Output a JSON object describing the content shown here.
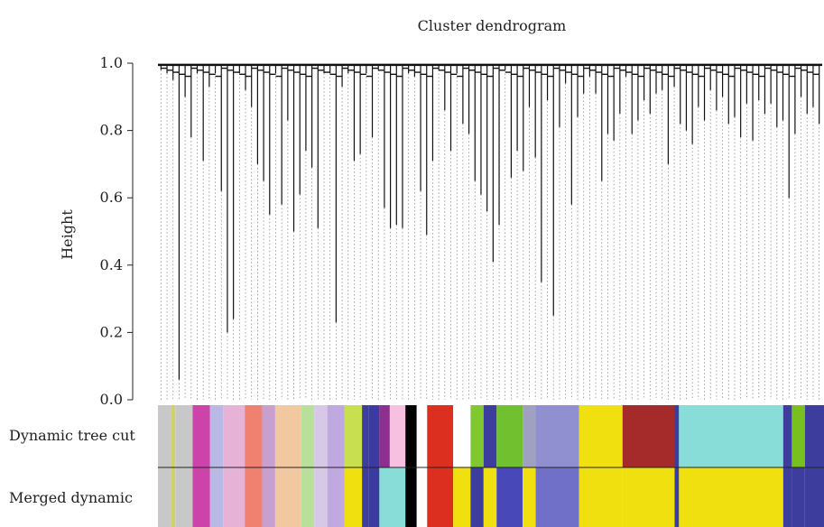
{
  "chart_data": {
    "type": "dendrogram",
    "title": "Cluster dendrogram",
    "ylabel": "Height",
    "ylim": [
      0,
      1
    ],
    "yticks": [
      "0.0",
      "0.2",
      "0.4",
      "0.6",
      "0.8",
      "1.0"
    ],
    "leaf_heights": [
      0.98,
      0.97,
      0.95,
      0.06,
      0.9,
      0.78,
      0.97,
      0.71,
      0.93,
      0.97,
      0.62,
      0.2,
      0.24,
      0.97,
      0.92,
      0.87,
      0.7,
      0.65,
      0.55,
      0.97,
      0.58,
      0.83,
      0.5,
      0.61,
      0.74,
      0.69,
      0.51,
      0.97,
      0.97,
      0.23,
      0.93,
      0.97,
      0.71,
      0.73,
      0.97,
      0.78,
      0.98,
      0.57,
      0.51,
      0.52,
      0.51,
      0.97,
      0.96,
      0.62,
      0.49,
      0.71,
      0.98,
      0.86,
      0.74,
      0.97,
      0.82,
      0.79,
      0.65,
      0.61,
      0.56,
      0.41,
      0.52,
      0.98,
      0.66,
      0.74,
      0.68,
      0.87,
      0.72,
      0.35,
      0.89,
      0.25,
      0.81,
      0.94,
      0.58,
      0.84,
      0.91,
      0.96,
      0.91,
      0.65,
      0.79,
      0.77,
      0.85,
      0.96,
      0.79,
      0.83,
      0.89,
      0.85,
      0.91,
      0.92,
      0.7,
      0.93,
      0.82,
      0.8,
      0.76,
      0.87,
      0.83,
      0.92,
      0.86,
      0.9,
      0.82,
      0.84,
      0.78,
      0.88,
      0.77,
      0.89,
      0.85,
      0.88,
      0.81,
      0.83,
      0.6,
      0.79,
      0.9,
      0.85,
      0.87,
      0.82
    ],
    "color_rows": [
      {
        "label": "Dynamic tree cut",
        "segments": [
          {
            "w": 0.015,
            "c": "#c8c8c8"
          },
          {
            "w": 0.005,
            "c": "#cdd36a"
          },
          {
            "w": 0.02,
            "c": "#c8c8c8"
          },
          {
            "w": 0.02,
            "c": "#cc44aa"
          },
          {
            "w": 0.015,
            "c": "#b9b9e6"
          },
          {
            "w": 0.025,
            "c": "#e6b3d6"
          },
          {
            "w": 0.02,
            "c": "#f08070"
          },
          {
            "w": 0.015,
            "c": "#c8a0d0"
          },
          {
            "w": 0.03,
            "c": "#f2c8a0"
          },
          {
            "w": 0.015,
            "c": "#b8e098"
          },
          {
            "w": 0.015,
            "c": "#d8c8e8"
          },
          {
            "w": 0.02,
            "c": "#c0a8e0"
          },
          {
            "w": 0.02,
            "c": "#c8e050"
          },
          {
            "w": 0.008,
            "c": "#3d3d9e"
          },
          {
            "w": 0.012,
            "c": "#3a3aa0"
          },
          {
            "w": 0.012,
            "c": "#8d2f8f"
          },
          {
            "w": 0.018,
            "c": "#f8c0e0"
          },
          {
            "w": 0.013,
            "c": "#000000"
          },
          {
            "w": 0.012,
            "c": "#ffffff"
          },
          {
            "w": 0.03,
            "c": "#dc2f1f"
          },
          {
            "w": 0.02,
            "c": "#ffffff"
          },
          {
            "w": 0.015,
            "c": "#7fc830"
          },
          {
            "w": 0.015,
            "c": "#3d3d9e"
          },
          {
            "w": 0.03,
            "c": "#70c030"
          },
          {
            "w": 0.015,
            "c": "#a0a0c0"
          },
          {
            "w": 0.05,
            "c": "#9090d0"
          },
          {
            "w": 0.05,
            "c": "#f0e010"
          },
          {
            "w": 0.06,
            "c": "#a52a2a"
          },
          {
            "w": 0.005,
            "c": "#3d3d9e"
          },
          {
            "w": 0.12,
            "c": "#88ddd8"
          },
          {
            "w": 0.01,
            "c": "#3d3d9e"
          },
          {
            "w": 0.015,
            "c": "#78c020"
          },
          {
            "w": 0.022,
            "c": "#3d3d9e"
          }
        ]
      },
      {
        "label": "Merged dynamic",
        "segments": [
          {
            "w": 0.015,
            "c": "#c8c8c8"
          },
          {
            "w": 0.005,
            "c": "#cdd36a"
          },
          {
            "w": 0.02,
            "c": "#c8c8c8"
          },
          {
            "w": 0.02,
            "c": "#cc44aa"
          },
          {
            "w": 0.015,
            "c": "#b9b9e6"
          },
          {
            "w": 0.025,
            "c": "#e6b3d6"
          },
          {
            "w": 0.02,
            "c": "#f08070"
          },
          {
            "w": 0.015,
            "c": "#c8a0d0"
          },
          {
            "w": 0.03,
            "c": "#f2c8a0"
          },
          {
            "w": 0.015,
            "c": "#b8e098"
          },
          {
            "w": 0.015,
            "c": "#d8c8e8"
          },
          {
            "w": 0.02,
            "c": "#c0a8e0"
          },
          {
            "w": 0.02,
            "c": "#f0e010"
          },
          {
            "w": 0.008,
            "c": "#3d3d9e"
          },
          {
            "w": 0.012,
            "c": "#3a3aa0"
          },
          {
            "w": 0.03,
            "c": "#88ddd8"
          },
          {
            "w": 0.013,
            "c": "#000000"
          },
          {
            "w": 0.012,
            "c": "#ffffff"
          },
          {
            "w": 0.03,
            "c": "#dc2f1f"
          },
          {
            "w": 0.02,
            "c": "#f0e010"
          },
          {
            "w": 0.015,
            "c": "#3d3d9e"
          },
          {
            "w": 0.015,
            "c": "#f0e010"
          },
          {
            "w": 0.03,
            "c": "#4848b8"
          },
          {
            "w": 0.015,
            "c": "#f0e010"
          },
          {
            "w": 0.05,
            "c": "#7070c8"
          },
          {
            "w": 0.05,
            "c": "#f0e010"
          },
          {
            "w": 0.06,
            "c": "#f0e010"
          },
          {
            "w": 0.005,
            "c": "#3d3d9e"
          },
          {
            "w": 0.12,
            "c": "#f0e010"
          },
          {
            "w": 0.01,
            "c": "#3d3d9e"
          },
          {
            "w": 0.015,
            "c": "#3d3d9e"
          },
          {
            "w": 0.022,
            "c": "#3d3d9e"
          }
        ]
      }
    ]
  }
}
